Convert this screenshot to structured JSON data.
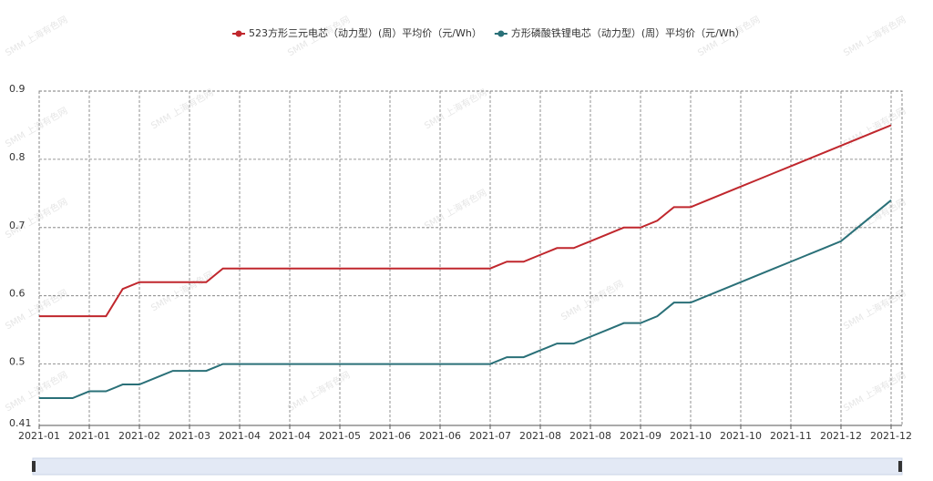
{
  "chart_data": {
    "type": "line",
    "watermark": "SMM 上海有色网",
    "categories": [
      "2021-01",
      null,
      null,
      "2021-01",
      null,
      null,
      "2021-02",
      null,
      null,
      "2021-03",
      null,
      null,
      "2021-04",
      null,
      null,
      "2021-04",
      null,
      null,
      "2021-05",
      null,
      null,
      "2021-06",
      null,
      null,
      "2021-06",
      null,
      null,
      "2021-07",
      null,
      null,
      "2021-08",
      null,
      null,
      "2021-08",
      null,
      null,
      "2021-09",
      null,
      null,
      "2021-10",
      null,
      null,
      "2021-10",
      null,
      null,
      "2021-11",
      null,
      null,
      "2021-12",
      null,
      null,
      "2021-12"
    ],
    "series": [
      {
        "name": "523方形三元电芯（动力型）(周）平均价（元/Wh）",
        "color": "#c0272d",
        "values": [
          0.57,
          0.57,
          0.57,
          0.57,
          0.57,
          0.61,
          0.62,
          0.62,
          0.62,
          0.62,
          0.62,
          0.64,
          0.64,
          0.64,
          0.64,
          0.64,
          0.64,
          0.64,
          0.64,
          0.64,
          0.64,
          0.64,
          0.64,
          0.64,
          0.64,
          0.64,
          0.64,
          0.64,
          0.65,
          0.65,
          0.66,
          0.67,
          0.67,
          0.68,
          0.69,
          0.7,
          0.7,
          0.71,
          0.73,
          0.73,
          0.74,
          0.75,
          0.76,
          0.77,
          0.78,
          0.79,
          0.8,
          0.81,
          0.82,
          0.83,
          0.84,
          0.85
        ]
      },
      {
        "name": "方形磷酸铁锂电芯（动力型）(周）平均价（元/Wh）",
        "color": "#2a7078",
        "values": [
          0.45,
          0.45,
          0.45,
          0.46,
          0.46,
          0.47,
          0.47,
          0.48,
          0.49,
          0.49,
          0.49,
          0.5,
          0.5,
          0.5,
          0.5,
          0.5,
          0.5,
          0.5,
          0.5,
          0.5,
          0.5,
          0.5,
          0.5,
          0.5,
          0.5,
          0.5,
          0.5,
          0.5,
          0.51,
          0.51,
          0.52,
          0.53,
          0.53,
          0.54,
          0.55,
          0.56,
          0.56,
          0.57,
          0.59,
          0.59,
          0.6,
          0.61,
          0.62,
          0.63,
          0.64,
          0.65,
          0.66,
          0.67,
          0.68,
          0.7,
          0.72,
          0.74
        ]
      }
    ],
    "ylim": [
      0.41,
      0.9
    ],
    "yticks": [
      0.41,
      0.5,
      0.6,
      0.7,
      0.8,
      0.9
    ],
    "grid": true
  }
}
